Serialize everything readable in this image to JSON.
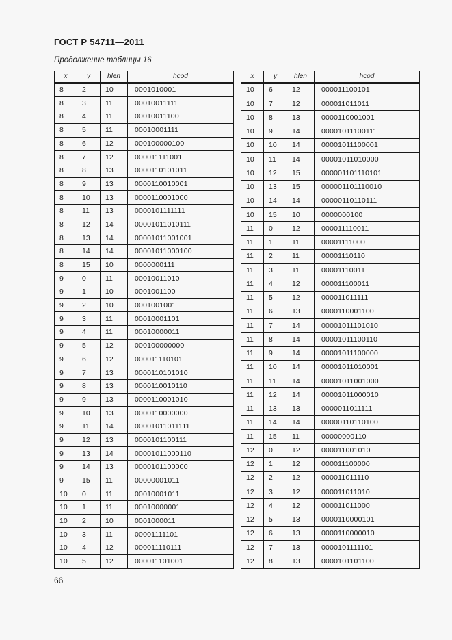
{
  "document": {
    "standard_number": "ГОСТ Р 54711—2011",
    "table_caption": "Продолжение таблицы 16",
    "page_number": "66"
  },
  "colors": {
    "page_background": "#f7f7f7",
    "text": "#1c1c1c",
    "table_border": "#1a1a1a"
  },
  "table_headers": {
    "x": "x",
    "y": "y",
    "hlen": "hlen",
    "hcod": "hcod"
  },
  "tables": {
    "left": {
      "rows": [
        [
          8,
          2,
          10,
          "0001010001"
        ],
        [
          8,
          3,
          11,
          "00010011111"
        ],
        [
          8,
          4,
          11,
          "00010011100"
        ],
        [
          8,
          5,
          11,
          "00010001111"
        ],
        [
          8,
          6,
          12,
          "000100000100"
        ],
        [
          8,
          7,
          12,
          "000011111001"
        ],
        [
          8,
          8,
          13,
          "0000110101011"
        ],
        [
          8,
          9,
          13,
          "0000110010001"
        ],
        [
          8,
          10,
          13,
          "0000110001000"
        ],
        [
          8,
          11,
          13,
          "0000101111111"
        ],
        [
          8,
          12,
          14,
          "00001011010111"
        ],
        [
          8,
          13,
          14,
          "00001011001001"
        ],
        [
          8,
          14,
          14,
          "00001011000100"
        ],
        [
          8,
          15,
          10,
          "0000000111"
        ],
        [
          9,
          0,
          11,
          "00010011010"
        ],
        [
          9,
          1,
          10,
          "0001001100"
        ],
        [
          9,
          2,
          10,
          "0001001001"
        ],
        [
          9,
          3,
          11,
          "00010001101"
        ],
        [
          9,
          4,
          11,
          "00010000011"
        ],
        [
          9,
          5,
          12,
          "000100000000"
        ],
        [
          9,
          6,
          12,
          "000011110101"
        ],
        [
          9,
          7,
          13,
          "0000110101010"
        ],
        [
          9,
          8,
          13,
          "0000110010110"
        ],
        [
          9,
          9,
          13,
          "0000110001010"
        ],
        [
          9,
          10,
          13,
          "0000110000000"
        ],
        [
          9,
          11,
          14,
          "00001011011111"
        ],
        [
          9,
          12,
          13,
          "0000101100111"
        ],
        [
          9,
          13,
          14,
          "00001011000110"
        ],
        [
          9,
          14,
          13,
          "0000101100000"
        ],
        [
          9,
          15,
          11,
          "00000001011"
        ],
        [
          10,
          0,
          11,
          "00010001011"
        ],
        [
          10,
          1,
          11,
          "00010000001"
        ],
        [
          10,
          2,
          10,
          "0001000011"
        ],
        [
          10,
          3,
          11,
          "00001111101"
        ],
        [
          10,
          4,
          12,
          "000011110111"
        ],
        [
          10,
          5,
          12,
          "000011101001"
        ]
      ]
    },
    "right": {
      "rows": [
        [
          10,
          6,
          12,
          "000011100101"
        ],
        [
          10,
          7,
          12,
          "000011011011"
        ],
        [
          10,
          8,
          13,
          "0000110001001"
        ],
        [
          10,
          9,
          14,
          "00001011100111"
        ],
        [
          10,
          10,
          14,
          "00001011100001"
        ],
        [
          10,
          11,
          14,
          "00001011010000"
        ],
        [
          10,
          12,
          15,
          "000001101110101"
        ],
        [
          10,
          13,
          15,
          "000001101110010"
        ],
        [
          10,
          14,
          14,
          "00000110110111"
        ],
        [
          10,
          15,
          10,
          "0000000100"
        ],
        [
          11,
          0,
          12,
          "000011110011"
        ],
        [
          11,
          1,
          11,
          "00001111000"
        ],
        [
          11,
          2,
          11,
          "00001110110"
        ],
        [
          11,
          3,
          11,
          "00001110011"
        ],
        [
          11,
          4,
          12,
          "000011100011"
        ],
        [
          11,
          5,
          12,
          "000011011111"
        ],
        [
          11,
          6,
          13,
          "0000110001100"
        ],
        [
          11,
          7,
          14,
          "00001011101010"
        ],
        [
          11,
          8,
          14,
          "00001011100110"
        ],
        [
          11,
          9,
          14,
          "00001011100000"
        ],
        [
          11,
          10,
          14,
          "00001011010001"
        ],
        [
          11,
          11,
          14,
          "00001011001000"
        ],
        [
          11,
          12,
          14,
          "00001011000010"
        ],
        [
          11,
          13,
          13,
          "0000011011111"
        ],
        [
          11,
          14,
          14,
          "00000110110100"
        ],
        [
          11,
          15,
          11,
          "00000000110"
        ],
        [
          12,
          0,
          12,
          "000011001010"
        ],
        [
          12,
          1,
          12,
          "000011100000"
        ],
        [
          12,
          2,
          12,
          "000011011110"
        ],
        [
          12,
          3,
          12,
          "000011011010"
        ],
        [
          12,
          4,
          12,
          "000011011000"
        ],
        [
          12,
          5,
          13,
          "0000110000101"
        ],
        [
          12,
          6,
          13,
          "0000110000010"
        ],
        [
          12,
          7,
          13,
          "0000101111101"
        ],
        [
          12,
          8,
          13,
          "0000101101100"
        ]
      ]
    }
  }
}
